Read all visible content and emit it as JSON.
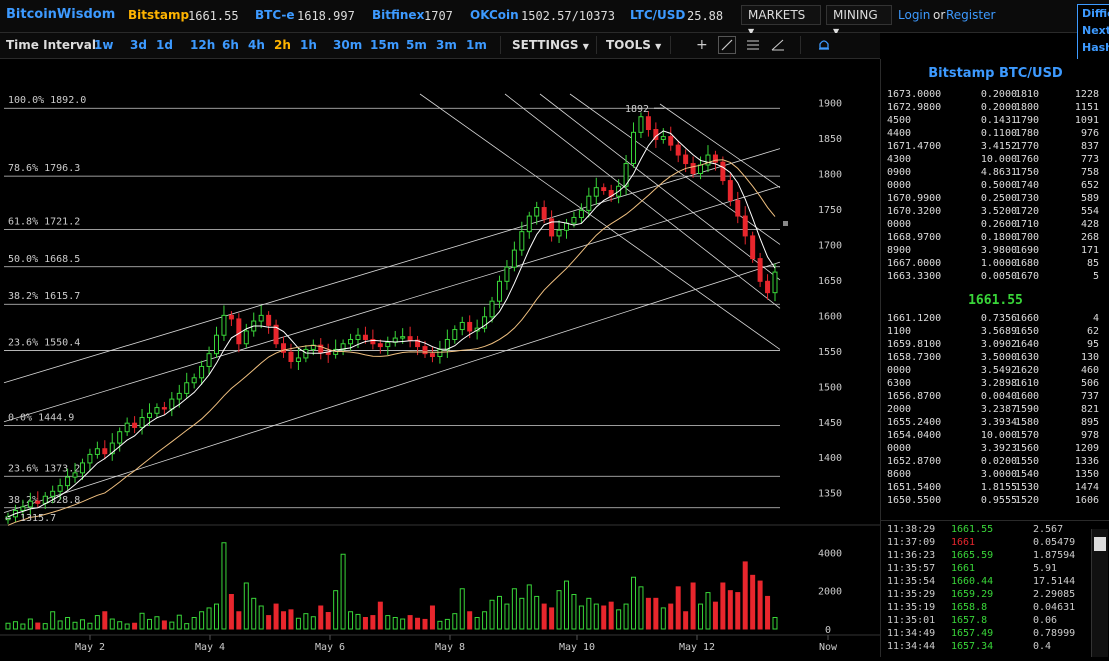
{
  "brand": "BitcoinWisdom",
  "tickers": [
    {
      "name": "Bitstamp",
      "value": "1661.55",
      "color": "#ffb400"
    },
    {
      "name": "BTC-e",
      "value": "1618.997",
      "color": "#3d9aff"
    },
    {
      "name": "Bitfinex",
      "value": "1707",
      "color": "#3d9aff"
    },
    {
      "name": "OKCoin",
      "value": "1502.57/10373",
      "color": "#3d9aff"
    },
    {
      "name": "LTC/USD",
      "value": "25.88",
      "color": "#3d9aff"
    }
  ],
  "nav": {
    "markets": "MARKETS",
    "mining": "MINING",
    "login": "Login",
    "or": "or",
    "register": "Register"
  },
  "side": {
    "l1": "Diffic",
    "l2": "Next",
    "l3": "Hash"
  },
  "toolbar": {
    "time_interval_label": "Time Interval:",
    "intervals": [
      "1w",
      "3d",
      "1d",
      "12h",
      "6h",
      "4h",
      "2h",
      "1h",
      "30m",
      "15m",
      "5m",
      "3m",
      "1m"
    ],
    "active_interval": "2h",
    "settings": "SETTINGS",
    "tools": "TOOLS"
  },
  "fib_levels": [
    {
      "label": "100.0% 1892.0",
      "price": 1892
    },
    {
      "label": "78.6% 1796.3",
      "price": 1796.3
    },
    {
      "label": "61.8% 1721.2",
      "price": 1721.2
    },
    {
      "label": "50.0% 1668.5",
      "price": 1668.5
    },
    {
      "label": "38.2% 1615.7",
      "price": 1615.7
    },
    {
      "label": "23.6% 1550.4",
      "price": 1550.4
    },
    {
      "label": "0.0% 1444.9",
      "price": 1444.9
    },
    {
      "label": "23.6% 1373.2",
      "price": 1373.2
    },
    {
      "label": "38.2% 1328.8",
      "price": 1328.8
    }
  ],
  "chart_data": {
    "type": "candlestick",
    "title": "",
    "price_axis": {
      "ticks": [
        1900,
        1850,
        1800,
        1750,
        1700,
        1650,
        1600,
        1550,
        1500,
        1450,
        1400,
        1350
      ],
      "range": [
        1300,
        1910
      ]
    },
    "volume_axis": {
      "ticks": [
        4000,
        2000,
        0
      ],
      "range": [
        0,
        4800
      ]
    },
    "x_ticks": [
      "May 2",
      "May 4",
      "May 6",
      "May 8",
      "May 10",
      "May 12",
      "Now"
    ],
    "high_annotation": "1892",
    "low_annotation": "1315.7",
    "series": [
      {
        "name": "Close",
        "values": [
          1316,
          1325,
          1330,
          1338,
          1335,
          1345,
          1352,
          1360,
          1372,
          1378,
          1392,
          1404,
          1412,
          1405,
          1420,
          1436,
          1448,
          1442,
          1456,
          1462,
          1470,
          1468,
          1482,
          1490,
          1505,
          1512,
          1528,
          1546,
          1572,
          1600,
          1595,
          1560,
          1578,
          1592,
          1600,
          1586,
          1560,
          1548,
          1535,
          1540,
          1552,
          1558,
          1548,
          1545,
          1552,
          1560,
          1566,
          1572,
          1566,
          1560,
          1556,
          1562,
          1568,
          1570,
          1565,
          1556,
          1546,
          1542,
          1552,
          1566,
          1580,
          1590,
          1578,
          1582,
          1598,
          1620,
          1648,
          1668,
          1692,
          1718,
          1740,
          1752,
          1736,
          1712,
          1720,
          1730,
          1738,
          1748,
          1768,
          1780,
          1776,
          1768,
          1782,
          1814,
          1858,
          1880,
          1862,
          1848,
          1852,
          1840,
          1826,
          1814,
          1800,
          1812,
          1826,
          1816,
          1790,
          1762,
          1740,
          1712,
          1680,
          1648,
          1632,
          1661
        ]
      },
      {
        "name": "Volume",
        "values": [
          300,
          380,
          260,
          520,
          310,
          280,
          900,
          420,
          600,
          350,
          480,
          300,
          700,
          900,
          520,
          380,
          260,
          300,
          820,
          500,
          640,
          420,
          360,
          720,
          280,
          600,
          900,
          1100,
          1300,
          4500,
          1800,
          900,
          2400,
          1600,
          1200,
          700,
          1300,
          900,
          1000,
          560,
          800,
          640,
          1200,
          860,
          2000,
          3900,
          900,
          760,
          600,
          700,
          1400,
          700,
          600,
          520,
          700,
          560,
          500,
          1200,
          400,
          500,
          800,
          2100,
          900,
          600,
          900,
          1500,
          1700,
          1300,
          2100,
          1600,
          2300,
          1700,
          1300,
          1100,
          2000,
          2500,
          1800,
          1200,
          1600,
          1300,
          1200,
          1400,
          1000,
          1300,
          2700,
          2200,
          1600,
          1600,
          1100,
          1300,
          2200,
          900,
          2400,
          1300,
          1900,
          1400,
          2400,
          2000,
          1900,
          3500,
          2800,
          2500,
          1700,
          600
        ]
      }
    ]
  },
  "panel": {
    "title": "Bitstamp BTC/USD",
    "last_price": "1661.55",
    "asks": [
      [
        "1673.0000",
        "0.2000",
        "1810",
        "1228"
      ],
      [
        "1672.9800",
        "0.2000",
        "1800",
        "1151"
      ],
      [
        "4500",
        "0.1431",
        "1790",
        "1091"
      ],
      [
        "4400",
        "0.1100",
        "1780",
        "976"
      ],
      [
        "1671.4700",
        "3.4152",
        "1770",
        "837"
      ],
      [
        "4300",
        "10.000",
        "1760",
        "773"
      ],
      [
        "0900",
        "4.8631",
        "1750",
        "758"
      ],
      [
        "0000",
        "0.5000",
        "1740",
        "652"
      ],
      [
        "1670.9900",
        "0.2500",
        "1730",
        "589"
      ],
      [
        "1670.3200",
        "3.5200",
        "1720",
        "554"
      ],
      [
        "0000",
        "0.2600",
        "1710",
        "428"
      ],
      [
        "1668.9700",
        "0.1800",
        "1700",
        "268"
      ],
      [
        "8900",
        "3.9800",
        "1690",
        "171"
      ],
      [
        "1667.0000",
        "1.0000",
        "1680",
        "85"
      ],
      [
        "1663.3300",
        "0.0050",
        "1670",
        "5"
      ]
    ],
    "bids": [
      [
        "1661.1200",
        "0.7356",
        "1660",
        "4"
      ],
      [
        "1100",
        "3.5689",
        "1650",
        "62"
      ],
      [
        "1659.8100",
        "3.0902",
        "1640",
        "95"
      ],
      [
        "1658.7300",
        "3.5000",
        "1630",
        "130"
      ],
      [
        "0000",
        "3.5492",
        "1620",
        "460"
      ],
      [
        "6300",
        "3.2898",
        "1610",
        "506"
      ],
      [
        "1656.8700",
        "0.0040",
        "1600",
        "737"
      ],
      [
        "2000",
        "3.2387",
        "1590",
        "821"
      ],
      [
        "1655.2400",
        "3.3934",
        "1580",
        "895"
      ],
      [
        "1654.0400",
        "10.000",
        "1570",
        "978"
      ],
      [
        "0000",
        "3.3923",
        "1560",
        "1209"
      ],
      [
        "1652.8700",
        "0.0200",
        "1550",
        "1336"
      ],
      [
        "8600",
        "3.0000",
        "1540",
        "1350"
      ],
      [
        "1651.5400",
        "1.8155",
        "1530",
        "1474"
      ],
      [
        "1650.5500",
        "0.9555",
        "1520",
        "1606"
      ]
    ],
    "trades": [
      {
        "time": "11:38:29",
        "price": "1661.55",
        "amount": "2.567",
        "side": "buy"
      },
      {
        "time": "11:37:09",
        "price": "1661",
        "amount": "0.05479",
        "side": "sell"
      },
      {
        "time": "11:36:23",
        "price": "1665.59",
        "amount": "1.87594",
        "side": "buy"
      },
      {
        "time": "11:35:57",
        "price": "1661",
        "amount": "5.91",
        "side": "buy"
      },
      {
        "time": "11:35:54",
        "price": "1660.44",
        "amount": "17.5144",
        "side": "buy"
      },
      {
        "time": "11:35:29",
        "price": "1659.29",
        "amount": "2.29085",
        "side": "buy"
      },
      {
        "time": "11:35:19",
        "price": "1658.8",
        "amount": "0.04631",
        "side": "buy"
      },
      {
        "time": "11:35:01",
        "price": "1657.8",
        "amount": "0.06",
        "side": "buy"
      },
      {
        "time": "11:34:49",
        "price": "1657.49",
        "amount": "0.78999",
        "side": "buy"
      },
      {
        "time": "11:34:44",
        "price": "1657.34",
        "amount": "0.4",
        "side": "buy"
      }
    ]
  },
  "colors": {
    "up": "#39d639",
    "down": "#e8262d",
    "accent": "#3d9aff",
    "active": "#ffb400",
    "ma_fast": "#ffffff",
    "ma_slow": "#f0c080"
  },
  "icons": {
    "crosshair": "crosshair-icon",
    "draw_line": "draw-line-icon",
    "fib": "fib-icon",
    "pen": "pen-icon",
    "alert": "bell-icon"
  }
}
